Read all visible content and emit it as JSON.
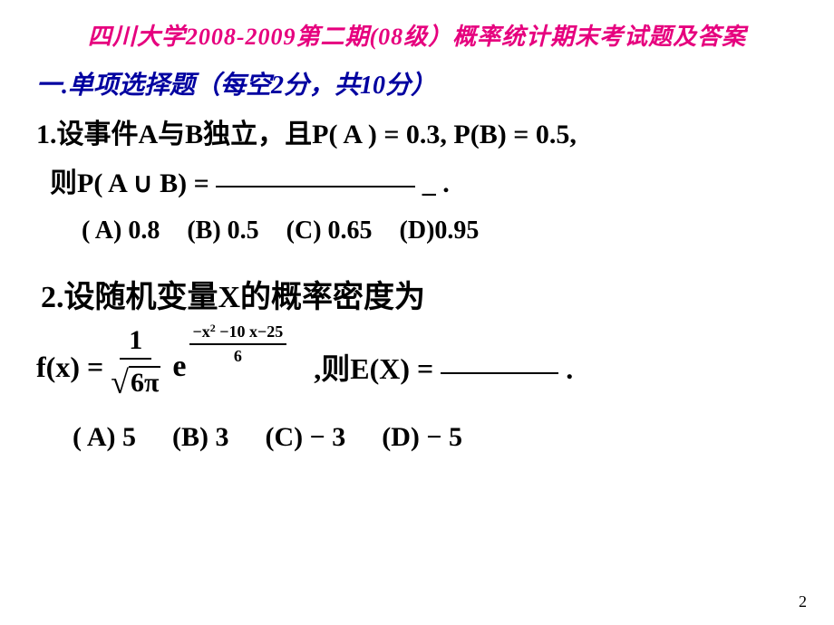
{
  "title": "四川大学2008-2009第二期(08级）概率统计期末考试题及答案",
  "section_header": "一.单项选择题（每空2分，共10分）",
  "q1": {
    "prefix": "1.设事件A与B独立，且P( A ) = 0.3, P(B) = 0.5,",
    "line2_pre": "则P( A ∪ B) = ",
    "line2_post": " _ .",
    "options": {
      "a": "( A) 0.8",
      "b": "(B) 0.5",
      "c": "(C) 0.65",
      "d": "(D)0.95"
    }
  },
  "q2": {
    "heading": "2.设随机变量X的概率密度为",
    "fx": "f(x) = ",
    "frac_num": "1",
    "sqrt_inner": "6π",
    "e": "e",
    "exp_num_pre": "−x",
    "exp_num_post": " −10 x−25",
    "exp_den": "6",
    "then": ",则E(X) = ",
    "period": " .",
    "options": {
      "a": "( A) 5",
      "b": "(B) 3",
      "c": "(C) − 3",
      "d": "(D) − 5"
    }
  },
  "page_number": "2",
  "colors": {
    "title_color": "#e6007e",
    "section_color": "#0000a0",
    "text_color": "#000000",
    "background": "#ffffff"
  }
}
